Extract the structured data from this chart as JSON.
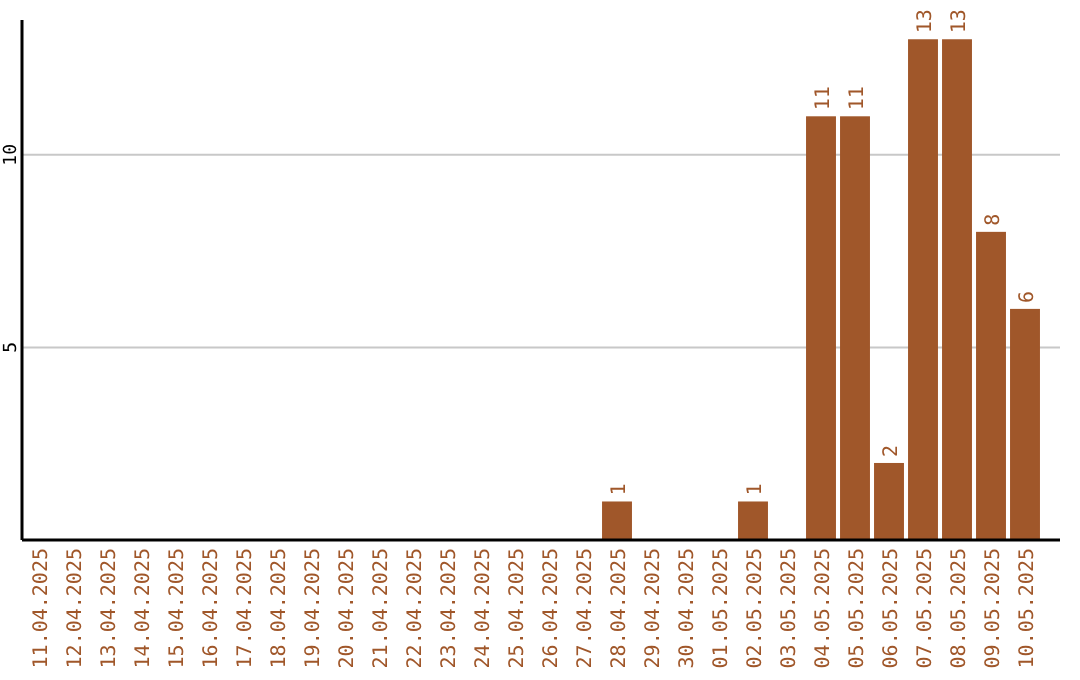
{
  "chart_data": {
    "type": "bar",
    "categories": [
      "11.04.2025",
      "12.04.2025",
      "13.04.2025",
      "14.04.2025",
      "15.04.2025",
      "16.04.2025",
      "17.04.2025",
      "18.04.2025",
      "19.04.2025",
      "20.04.2025",
      "21.04.2025",
      "22.04.2025",
      "23.04.2025",
      "24.04.2025",
      "25.04.2025",
      "26.04.2025",
      "27.04.2025",
      "28.04.2025",
      "29.04.2025",
      "30.04.2025",
      "01.05.2025",
      "02.05.2025",
      "03.05.2025",
      "04.05.2025",
      "05.05.2025",
      "06.05.2025",
      "07.05.2025",
      "08.05.2025",
      "09.05.2025",
      "10.05.2025"
    ],
    "values": [
      0,
      0,
      0,
      0,
      0,
      0,
      0,
      0,
      0,
      0,
      0,
      0,
      0,
      0,
      0,
      0,
      0,
      1,
      0,
      0,
      0,
      1,
      0,
      11,
      11,
      2,
      13,
      13,
      8,
      6
    ],
    "value_labels": [
      null,
      null,
      null,
      null,
      null,
      null,
      null,
      null,
      null,
      null,
      null,
      null,
      null,
      null,
      null,
      null,
      null,
      "1",
      null,
      null,
      null,
      "1",
      null,
      "11",
      "11",
      "2",
      "13",
      "13",
      "8",
      "6"
    ],
    "color": "#a0572a",
    "ylim": [
      0,
      13.5
    ],
    "yticks": [
      5,
      10
    ],
    "grid": "y"
  }
}
